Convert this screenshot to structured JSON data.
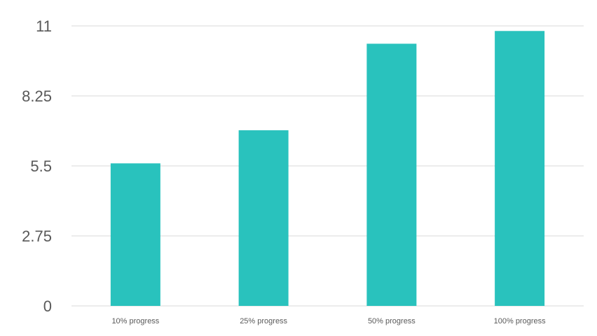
{
  "chart_data": {
    "type": "bar",
    "categories": [
      "10% progress",
      "25% progress",
      "50% progress",
      "100% progress"
    ],
    "values": [
      5.6,
      6.9,
      10.3,
      10.8
    ],
    "ylim": [
      0,
      11
    ],
    "yticks": [
      "0",
      "2.75",
      "5.5",
      "8.25",
      "11"
    ],
    "grid": true,
    "legend": "none",
    "title": "",
    "xlabel": "",
    "ylabel": ""
  },
  "colors": {
    "bar": "#29c2bd",
    "grid": "#d9d9d9",
    "axis_text": "#595959"
  }
}
